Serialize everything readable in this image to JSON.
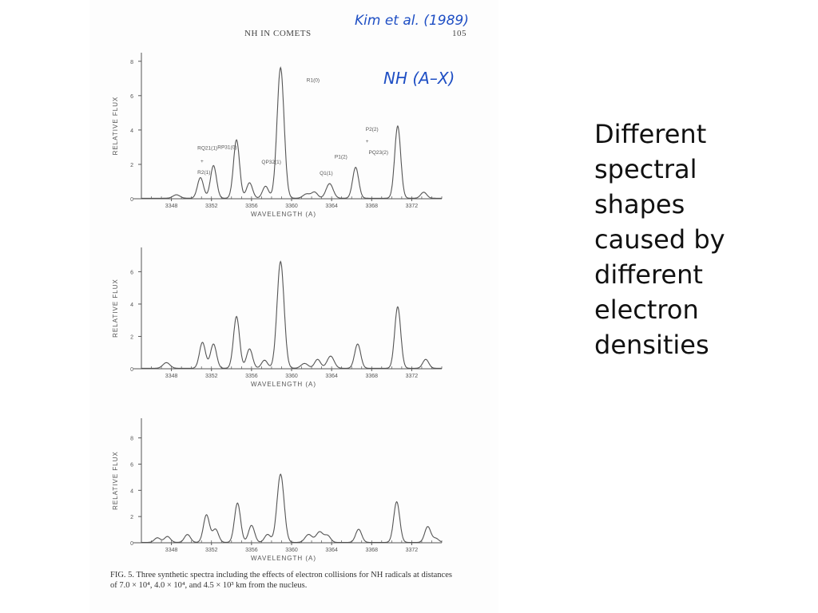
{
  "page": {
    "running_header": "NH IN COMETS",
    "page_number": "105",
    "handwritten_citation": "Kim et al. (1989)",
    "handwritten_band": "NH (A–X)",
    "caption": "FIG. 5. Three synthetic spectra including the effects of electron collisions for NH radicals at distances of 7.0 × 10⁴, 4.0 × 10⁴, and 4.5 × 10³ km from the nucleus.",
    "side_text_lines": [
      "Different",
      "spectral",
      "shapes",
      "caused by",
      "different",
      "electron",
      "densities"
    ]
  },
  "colors": {
    "ink": "#555555",
    "handwriting": "#1f4fc4"
  },
  "chart_data": [
    {
      "type": "line",
      "xlabel": "WAVELENGTH (A)",
      "ylabel": "RELATIVE FLUX",
      "xlim": [
        3345,
        3375
      ],
      "ylim": [
        0,
        8.5
      ],
      "xticks": [
        3348,
        3352,
        3356,
        3360,
        3364,
        3368,
        3372
      ],
      "yticks": [
        0,
        2,
        4,
        6,
        8
      ],
      "peaks": [
        [
          3348.5,
          0.2,
          0.35
        ],
        [
          3350.9,
          1.2,
          0.3
        ],
        [
          3352.2,
          1.9,
          0.3
        ],
        [
          3354.5,
          3.4,
          0.3
        ],
        [
          3355.8,
          0.9,
          0.3
        ],
        [
          3357.4,
          0.7,
          0.3
        ],
        [
          3358.9,
          7.6,
          0.35
        ],
        [
          3361.5,
          0.25,
          0.35
        ],
        [
          3362.3,
          0.35,
          0.3
        ],
        [
          3363.8,
          0.85,
          0.35
        ],
        [
          3366.4,
          1.8,
          0.3
        ],
        [
          3370.6,
          4.2,
          0.3
        ],
        [
          3373.2,
          0.35,
          0.3
        ]
      ],
      "annotations": [
        {
          "text": "R1(0)",
          "x": 3361.5,
          "y": 6.8
        },
        {
          "text": "RQ21(1)",
          "x": 3350.6,
          "y": 2.85
        },
        {
          "text": "+",
          "x": 3350.9,
          "y": 2.1
        },
        {
          "text": "R2(1)",
          "x": 3350.6,
          "y": 1.45
        },
        {
          "text": "RP31(0)",
          "x": 3352.6,
          "y": 2.9
        },
        {
          "text": "QP32(1)",
          "x": 3357.0,
          "y": 2.05
        },
        {
          "text": "Q1(1)",
          "x": 3362.8,
          "y": 1.4
        },
        {
          "text": "P1(2)",
          "x": 3364.3,
          "y": 2.35
        },
        {
          "text": "P2(2)",
          "x": 3367.4,
          "y": 3.95
        },
        {
          "text": "+",
          "x": 3367.4,
          "y": 3.25
        },
        {
          "text": "PQ23(2)",
          "x": 3367.7,
          "y": 2.6
        }
      ]
    },
    {
      "type": "line",
      "xlabel": "WAVELENGTH (A)",
      "ylabel": "RELATIVE FLUX",
      "xlim": [
        3345,
        3375
      ],
      "ylim": [
        0,
        7.5
      ],
      "xticks": [
        3348,
        3352,
        3356,
        3360,
        3364,
        3368,
        3372
      ],
      "yticks": [
        0,
        2,
        4,
        6
      ],
      "peaks": [
        [
          3347.5,
          0.35,
          0.35
        ],
        [
          3351.1,
          1.6,
          0.3
        ],
        [
          3352.2,
          1.5,
          0.3
        ],
        [
          3354.5,
          3.2,
          0.3
        ],
        [
          3355.8,
          1.2,
          0.3
        ],
        [
          3357.3,
          0.5,
          0.3
        ],
        [
          3358.9,
          6.6,
          0.35
        ],
        [
          3361.3,
          0.3,
          0.35
        ],
        [
          3362.6,
          0.55,
          0.3
        ],
        [
          3363.9,
          0.75,
          0.35
        ],
        [
          3366.6,
          1.5,
          0.3
        ],
        [
          3370.6,
          3.8,
          0.3
        ],
        [
          3373.4,
          0.55,
          0.3
        ]
      ],
      "annotations": []
    },
    {
      "type": "line",
      "xlabel": "WAVELENGTH (A)",
      "ylabel": "RELATIVE FLUX",
      "xlim": [
        3345,
        3375
      ],
      "ylim": [
        0,
        9.5
      ],
      "xticks": [
        3348,
        3352,
        3356,
        3360,
        3364,
        3368,
        3372
      ],
      "yticks": [
        0,
        2,
        4,
        6,
        8
      ],
      "peaks": [
        [
          3346.6,
          0.35,
          0.3
        ],
        [
          3347.6,
          0.45,
          0.3
        ],
        [
          3349.6,
          0.6,
          0.3
        ],
        [
          3351.5,
          2.1,
          0.3
        ],
        [
          3352.4,
          1.0,
          0.3
        ],
        [
          3354.6,
          3.0,
          0.3
        ],
        [
          3356.0,
          1.3,
          0.3
        ],
        [
          3357.6,
          0.6,
          0.3
        ],
        [
          3358.9,
          5.2,
          0.35
        ],
        [
          3361.7,
          0.6,
          0.35
        ],
        [
          3362.8,
          0.8,
          0.35
        ],
        [
          3363.6,
          0.5,
          0.3
        ],
        [
          3366.7,
          1.0,
          0.3
        ],
        [
          3370.5,
          3.1,
          0.3
        ],
        [
          3373.6,
          1.2,
          0.3
        ],
        [
          3374.4,
          0.3,
          0.3
        ]
      ],
      "annotations": []
    }
  ]
}
